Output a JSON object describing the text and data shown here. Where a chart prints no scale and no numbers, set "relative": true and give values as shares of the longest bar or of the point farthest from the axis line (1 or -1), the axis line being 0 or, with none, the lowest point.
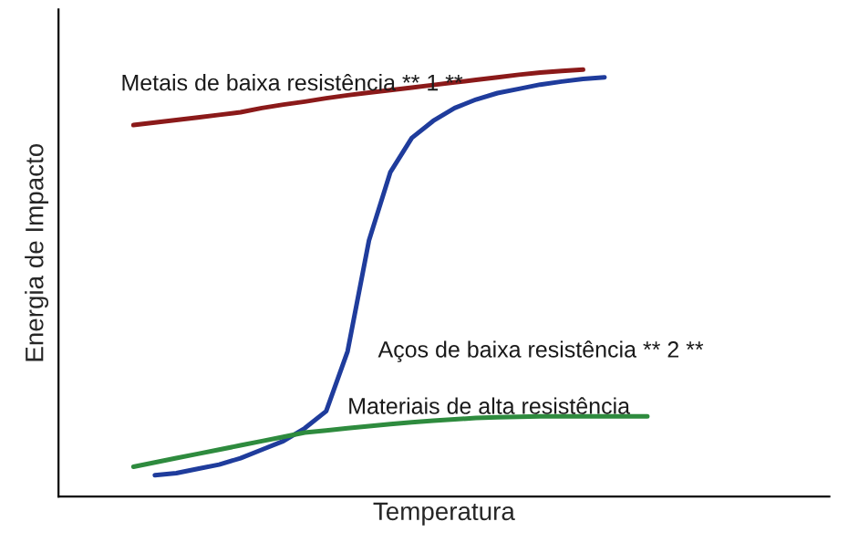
{
  "chart_data": {
    "type": "line",
    "relative": true,
    "xlabel": "Temperatura",
    "ylabel": "Energia de Impacto",
    "legend": false,
    "marker": "none",
    "line_style": "solid",
    "categories": [
      null,
      null,
      null,
      null,
      null,
      null,
      null,
      null,
      null,
      null,
      null,
      null,
      null,
      null,
      null,
      null,
      null,
      null,
      null,
      null,
      null,
      null,
      null,
      null,
      null,
      null,
      null,
      null,
      null,
      null,
      null,
      null,
      null,
      null,
      null,
      null
    ],
    "series": [
      {
        "name": "Metais de baixa resistência ** 1 **",
        "color": "#8b1a1a",
        "values": [
          null,
          null,
          null,
          0.87,
          0.876,
          0.882,
          0.888,
          0.894,
          0.9,
          0.91,
          0.918,
          0.925,
          0.933,
          0.94,
          0.946,
          0.952,
          0.958,
          0.964,
          0.97,
          0.976,
          0.982,
          0.988,
          0.993,
          0.997,
          1,
          null,
          null,
          null,
          null,
          null,
          null,
          null,
          null,
          null,
          null,
          null
        ]
      },
      {
        "name": "Aços de baixa resistência ** 2 **",
        "color": "#1f3c9c",
        "values": [
          null,
          null,
          null,
          null,
          0.05,
          0.055,
          0.065,
          0.075,
          0.09,
          0.11,
          0.13,
          0.16,
          0.2,
          0.34,
          0.6,
          0.76,
          0.84,
          0.88,
          0.91,
          0.93,
          0.945,
          0.955,
          0.965,
          0.972,
          0.978,
          0.982,
          null,
          null,
          null,
          null,
          null,
          null,
          null,
          null,
          null,
          null
        ]
      },
      {
        "name": "Materiais de alta resistência",
        "color": "#2e8b3e",
        "values": [
          null,
          null,
          null,
          0.07,
          0.08,
          0.09,
          0.1,
          0.11,
          0.12,
          0.13,
          0.14,
          0.15,
          0.155,
          0.16,
          0.165,
          0.17,
          0.174,
          0.178,
          0.181,
          0.184,
          0.186,
          0.187,
          0.188,
          0.188,
          0.188,
          0.188,
          0.188,
          0.188,
          null,
          null,
          null,
          null,
          null,
          null,
          null,
          null
        ]
      }
    ]
  }
}
